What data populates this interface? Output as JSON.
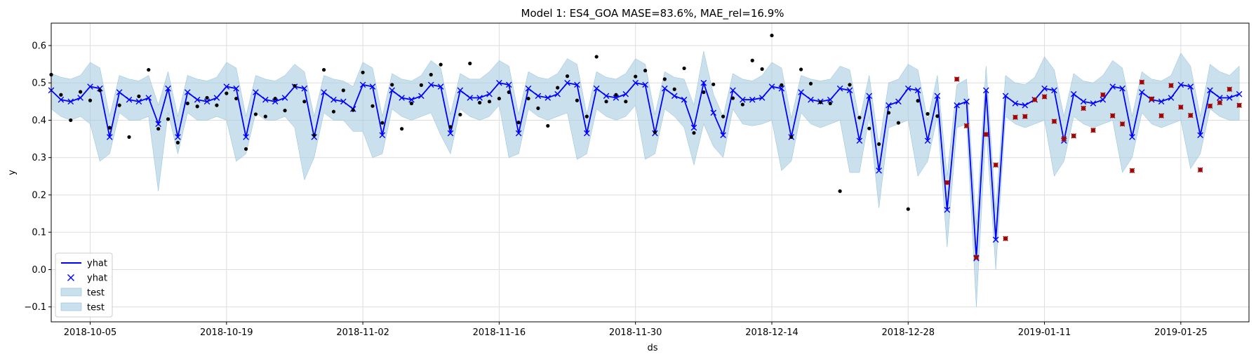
{
  "chart_data": {
    "type": "line",
    "title": "Model 1: ES4_GOA MASE=83.6%, MAE_rel=16.9%",
    "xlabel": "ds",
    "ylabel": "y",
    "x_start": "2018-10-01",
    "xlim": [
      "2018-10-01",
      "2019-02-01"
    ],
    "ylim": [
      -0.14,
      0.66
    ],
    "grid": true,
    "legend_position": "lower-left",
    "x_ticks": [
      "2018-10-05",
      "2018-10-19",
      "2018-11-02",
      "2018-11-16",
      "2018-11-30",
      "2018-12-14",
      "2018-12-28",
      "2019-01-11",
      "2019-01-25"
    ],
    "y_ticks": [
      "−0.1",
      "0.0",
      "0.1",
      "0.2",
      "0.3",
      "0.4",
      "0.5",
      "0.6"
    ],
    "y_tick_values": [
      -0.1,
      0.0,
      0.1,
      0.2,
      0.3,
      0.4,
      0.5,
      0.6
    ],
    "legend": [
      {
        "label": "yhat",
        "marker": "line",
        "color": "#0000ff"
      },
      {
        "label": "yhat",
        "marker": "x",
        "color": "#0000ff"
      },
      {
        "label": "test",
        "marker": "patch",
        "color": "#a6cde1"
      },
      {
        "label": "test",
        "marker": "patch",
        "color": "#a6cde1"
      }
    ],
    "colors": {
      "yhat": "#0000ff",
      "band": "#a6cde1",
      "train_points": "#000000",
      "test_points": "#cc0000"
    },
    "yhat": [
      0.48,
      0.455,
      0.45,
      0.46,
      0.49,
      0.485,
      0.355,
      0.475,
      0.455,
      0.45,
      0.46,
      0.39,
      0.485,
      0.355,
      0.475,
      0.455,
      0.45,
      0.46,
      0.49,
      0.485,
      0.355,
      0.475,
      0.455,
      0.45,
      0.46,
      0.49,
      0.485,
      0.355,
      0.475,
      0.455,
      0.45,
      0.43,
      0.495,
      0.49,
      0.36,
      0.48,
      0.46,
      0.455,
      0.465,
      0.495,
      0.49,
      0.365,
      0.48,
      0.46,
      0.46,
      0.47,
      0.5,
      0.495,
      0.365,
      0.485,
      0.465,
      0.46,
      0.47,
      0.5,
      0.495,
      0.365,
      0.485,
      0.465,
      0.46,
      0.47,
      0.5,
      0.495,
      0.365,
      0.485,
      0.465,
      0.455,
      0.38,
      0.5,
      0.42,
      0.36,
      0.48,
      0.455,
      0.455,
      0.46,
      0.49,
      0.485,
      0.355,
      0.475,
      0.455,
      0.45,
      0.455,
      0.485,
      0.48,
      0.345,
      0.465,
      0.265,
      0.44,
      0.45,
      0.485,
      0.48,
      0.345,
      0.465,
      0.16,
      0.44,
      0.45,
      0.03,
      0.48,
      0.08,
      0.465,
      0.445,
      0.44,
      0.455,
      0.485,
      0.48,
      0.345,
      0.47,
      0.45,
      0.445,
      0.455,
      0.49,
      0.485,
      0.355,
      0.475,
      0.455,
      0.45,
      0.46,
      0.495,
      0.49,
      0.36,
      0.48,
      0.46,
      0.46,
      0.47
    ],
    "yhat_upper": [
      0.525,
      0.515,
      0.51,
      0.52,
      0.555,
      0.54,
      0.41,
      0.52,
      0.51,
      0.505,
      0.52,
      0.44,
      0.53,
      0.41,
      0.52,
      0.51,
      0.505,
      0.515,
      0.555,
      0.54,
      0.41,
      0.52,
      0.51,
      0.505,
      0.52,
      0.55,
      0.53,
      0.41,
      0.52,
      0.51,
      0.505,
      0.49,
      0.555,
      0.54,
      0.41,
      0.525,
      0.51,
      0.505,
      0.52,
      0.56,
      0.54,
      0.415,
      0.525,
      0.51,
      0.51,
      0.53,
      0.56,
      0.545,
      0.415,
      0.53,
      0.515,
      0.51,
      0.525,
      0.565,
      0.55,
      0.415,
      0.53,
      0.515,
      0.51,
      0.525,
      0.565,
      0.55,
      0.415,
      0.53,
      0.515,
      0.51,
      0.44,
      0.585,
      0.47,
      0.41,
      0.525,
      0.51,
      0.505,
      0.52,
      0.555,
      0.54,
      0.405,
      0.52,
      0.51,
      0.505,
      0.51,
      0.545,
      0.535,
      0.4,
      0.52,
      0.33,
      0.5,
      0.51,
      0.55,
      0.535,
      0.4,
      0.52,
      0.25,
      0.495,
      0.51,
      0.12,
      0.545,
      0.16,
      0.52,
      0.5,
      0.495,
      0.515,
      0.57,
      0.535,
      0.41,
      0.525,
      0.505,
      0.5,
      0.52,
      0.56,
      0.54,
      0.41,
      0.53,
      0.51,
      0.505,
      0.52,
      0.58,
      0.545,
      0.41,
      0.55,
      0.53,
      0.52,
      0.545
    ],
    "yhat_lower": [
      0.43,
      0.41,
      0.4,
      0.41,
      0.39,
      0.29,
      0.31,
      0.42,
      0.4,
      0.4,
      0.41,
      0.21,
      0.42,
      0.31,
      0.42,
      0.4,
      0.4,
      0.41,
      0.4,
      0.29,
      0.31,
      0.42,
      0.4,
      0.4,
      0.41,
      0.38,
      0.24,
      0.3,
      0.42,
      0.4,
      0.4,
      0.37,
      0.37,
      0.3,
      0.31,
      0.43,
      0.41,
      0.4,
      0.41,
      0.42,
      0.36,
      0.31,
      0.43,
      0.41,
      0.4,
      0.41,
      0.44,
      0.3,
      0.31,
      0.43,
      0.41,
      0.4,
      0.41,
      0.42,
      0.295,
      0.31,
      0.43,
      0.41,
      0.4,
      0.41,
      0.44,
      0.295,
      0.31,
      0.43,
      0.41,
      0.38,
      0.28,
      0.39,
      0.33,
      0.3,
      0.43,
      0.39,
      0.385,
      0.39,
      0.4,
      0.265,
      0.29,
      0.42,
      0.39,
      0.38,
      0.39,
      0.4,
      0.26,
      0.26,
      0.41,
      0.165,
      0.38,
      0.39,
      0.4,
      0.25,
      0.29,
      0.41,
      0.06,
      0.38,
      0.39,
      -0.1,
      0.38,
      0.0,
      0.41,
      0.39,
      0.38,
      0.39,
      0.4,
      0.25,
      0.29,
      0.41,
      0.39,
      0.38,
      0.39,
      0.4,
      0.26,
      0.3,
      0.42,
      0.39,
      0.38,
      0.39,
      0.4,
      0.27,
      0.31,
      0.43,
      0.41,
      0.4,
      0.4
    ],
    "train_points": [
      [
        0,
        0.522
      ],
      [
        1,
        0.468
      ],
      [
        2,
        0.4
      ],
      [
        3,
        0.476
      ],
      [
        4,
        0.453
      ],
      [
        5,
        0.48
      ],
      [
        6,
        0.38
      ],
      [
        7,
        0.44
      ],
      [
        8,
        0.355
      ],
      [
        9,
        0.464
      ],
      [
        10,
        0.535
      ],
      [
        11,
        0.377
      ],
      [
        12,
        0.403
      ],
      [
        13,
        0.34
      ],
      [
        14,
        0.445
      ],
      [
        15,
        0.437
      ],
      [
        16,
        0.46
      ],
      [
        17,
        0.44
      ],
      [
        18,
        0.472
      ],
      [
        19,
        0.458
      ],
      [
        20,
        0.323
      ],
      [
        21,
        0.416
      ],
      [
        22,
        0.41
      ],
      [
        23,
        0.458
      ],
      [
        24,
        0.426
      ],
      [
        25,
        0.492
      ],
      [
        26,
        0.45
      ],
      [
        27,
        0.36
      ],
      [
        28,
        0.535
      ],
      [
        29,
        0.423
      ],
      [
        30,
        0.48
      ],
      [
        31,
        0.427
      ],
      [
        32,
        0.528
      ],
      [
        33,
        0.438
      ],
      [
        34,
        0.393
      ],
      [
        35,
        0.495
      ],
      [
        36,
        0.377
      ],
      [
        37,
        0.445
      ],
      [
        38,
        0.494
      ],
      [
        39,
        0.522
      ],
      [
        40,
        0.549
      ],
      [
        41,
        0.382
      ],
      [
        42,
        0.415
      ],
      [
        43,
        0.552
      ],
      [
        44,
        0.447
      ],
      [
        45,
        0.45
      ],
      [
        46,
        0.458
      ],
      [
        47,
        0.475
      ],
      [
        48,
        0.394
      ],
      [
        49,
        0.458
      ],
      [
        50,
        0.432
      ],
      [
        51,
        0.385
      ],
      [
        52,
        0.487
      ],
      [
        53,
        0.518
      ],
      [
        54,
        0.453
      ],
      [
        55,
        0.41
      ],
      [
        56,
        0.57
      ],
      [
        57,
        0.45
      ],
      [
        58,
        0.468
      ],
      [
        59,
        0.45
      ],
      [
        60,
        0.517
      ],
      [
        61,
        0.533
      ],
      [
        62,
        0.368
      ],
      [
        63,
        0.51
      ],
      [
        64,
        0.483
      ],
      [
        65,
        0.539
      ],
      [
        66,
        0.366
      ],
      [
        67,
        0.475
      ],
      [
        68,
        0.496
      ],
      [
        69,
        0.41
      ],
      [
        70,
        0.459
      ],
      [
        71,
        0.442
      ],
      [
        72,
        0.56
      ],
      [
        73,
        0.537
      ],
      [
        74,
        0.627
      ],
      [
        75,
        0.494
      ],
      [
        76,
        0.355
      ],
      [
        77,
        0.536
      ],
      [
        78,
        0.498
      ],
      [
        79,
        0.448
      ],
      [
        80,
        0.445
      ],
      [
        81,
        0.21
      ],
      [
        82,
        0.495
      ],
      [
        83,
        0.407
      ],
      [
        84,
        0.378
      ],
      [
        85,
        0.336
      ],
      [
        86,
        0.42
      ],
      [
        87,
        0.393
      ],
      [
        88,
        0.162
      ],
      [
        89,
        0.452
      ],
      [
        90,
        0.417
      ],
      [
        91,
        0.411
      ]
    ],
    "test_points": [
      [
        92,
        0.233
      ],
      [
        93,
        0.51
      ],
      [
        94,
        0.385
      ],
      [
        95,
        0.033
      ],
      [
        96,
        0.362
      ],
      [
        97,
        0.28
      ],
      [
        98,
        0.083
      ],
      [
        99,
        0.408
      ],
      [
        100,
        0.41
      ],
      [
        101,
        0.455
      ],
      [
        102,
        0.463
      ],
      [
        103,
        0.397
      ],
      [
        104,
        0.35
      ],
      [
        105,
        0.358
      ],
      [
        106,
        0.432
      ],
      [
        107,
        0.373
      ],
      [
        108,
        0.468
      ],
      [
        109,
        0.412
      ],
      [
        110,
        0.39
      ],
      [
        111,
        0.265
      ],
      [
        112,
        0.502
      ],
      [
        113,
        0.457
      ],
      [
        114,
        0.412
      ],
      [
        115,
        0.493
      ],
      [
        116,
        0.435
      ],
      [
        117,
        0.413
      ],
      [
        118,
        0.267
      ],
      [
        119,
        0.438
      ],
      [
        120,
        0.447
      ],
      [
        121,
        0.483
      ],
      [
        122,
        0.44
      ]
    ]
  }
}
